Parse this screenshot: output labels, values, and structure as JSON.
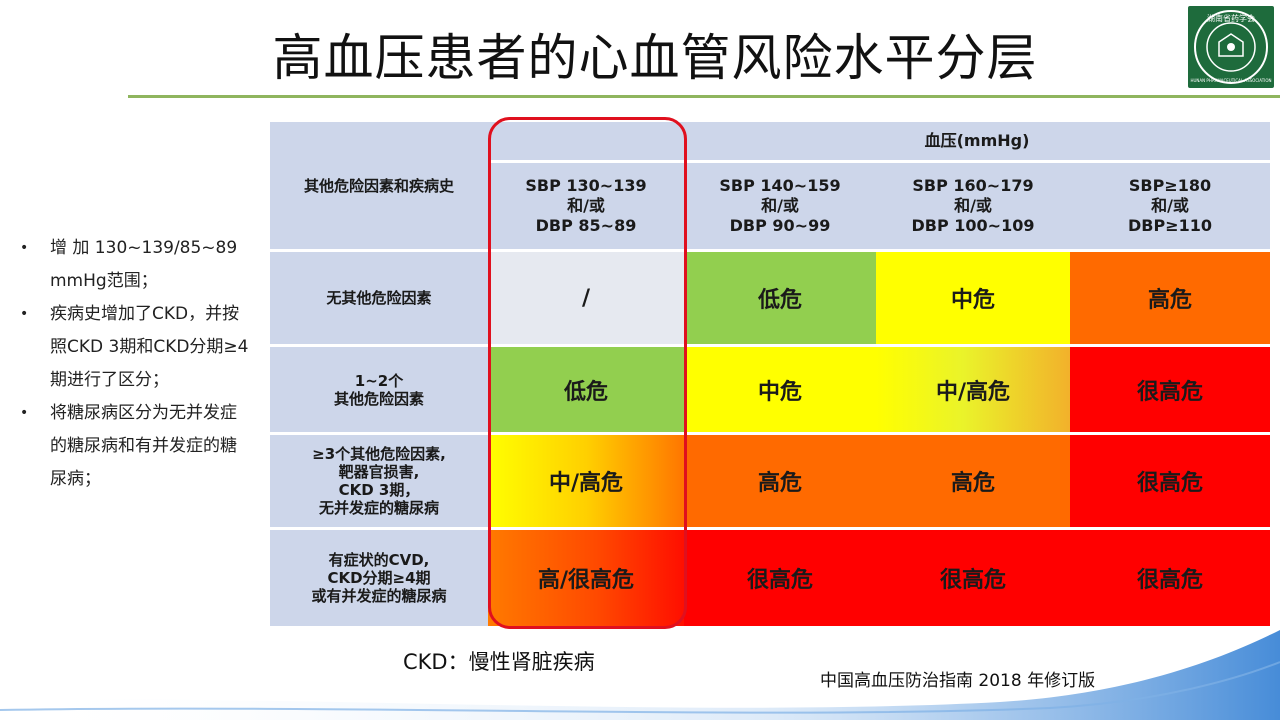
{
  "slide": {
    "title": "高血压患者的心血管风险水平分层",
    "logo_text": "湖南省药学会",
    "logo_subtext": "HUNAN PHARMACEUTICAL ASSOCIATION"
  },
  "bullets": [
    "增 加 130~139/85~89 mmHg范围；",
    "疾病史增加了CKD，并按照CKD  3期和CKD分期≥4期进行了区分；",
    "将糖尿病区分为无并发症的糖尿病和有并发症的糖尿病；"
  ],
  "table": {
    "corner": "其他危险因素和疾病史",
    "group_header": "血压(mmHg)",
    "columns": [
      [
        "SBP 130~139",
        "和/或",
        "DBP 85~89"
      ],
      [
        "SBP 140~159",
        "和/或",
        "DBP 90~99"
      ],
      [
        "SBP 160~179",
        "和/或",
        "DBP 100~109"
      ],
      [
        "SBP≥180",
        "和/或",
        "DBP≥110"
      ]
    ],
    "rows": [
      {
        "label": [
          "无其他危险因素"
        ],
        "cells": [
          "/",
          "低危",
          "中危",
          "高危"
        ]
      },
      {
        "label": [
          "1~2个",
          "其他危险因素"
        ],
        "cells": [
          "低危",
          "中危",
          "中/高危",
          "很高危"
        ]
      },
      {
        "label": [
          "≥3个其他危险因素,",
          "靶器官损害,",
          "CKD 3期，",
          "无并发症的糖尿病"
        ],
        "cells": [
          "中/高危",
          "高危",
          "高危",
          "很高危"
        ]
      },
      {
        "label": [
          "有症状的CVD,",
          "CKD分期≥4期",
          "或有并发症的糖尿病"
        ],
        "cells": [
          "高/很高危",
          "很高危",
          "很高危",
          "很高危"
        ]
      }
    ]
  },
  "footnote": "CKD：慢性肾脏疾病",
  "source": "中国高血压防治指南 2018 年修订版",
  "colors": {
    "title_rule": "#8fb55e",
    "header_bg": "#cdd6ea",
    "low_risk": "#92cf4f",
    "medium_risk": "#ffff00",
    "high_risk": "#ff6a00",
    "very_high_risk": "#ff0000",
    "highlight_border": "#e0101e",
    "logo_bg": "#1e6b3c"
  }
}
